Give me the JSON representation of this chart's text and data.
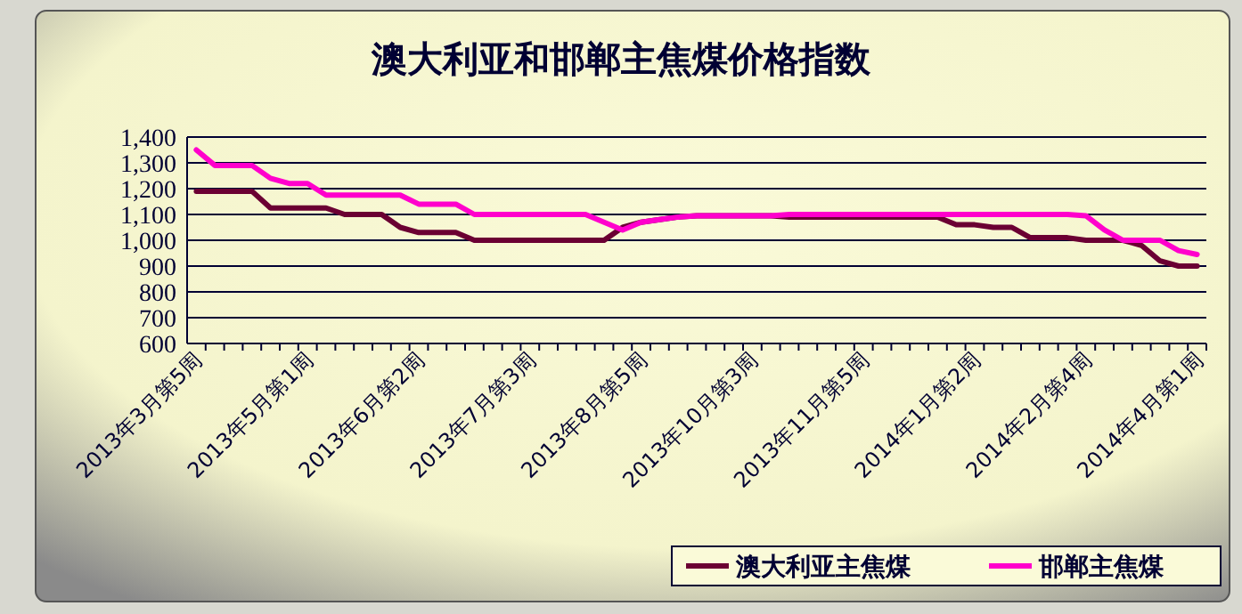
{
  "chart_data": {
    "type": "line",
    "title": "澳大利亚和邯郸主焦煤价格指数",
    "categories": [
      "2013年3月第5周",
      null,
      null,
      null,
      null,
      null,
      "2013年5月第1周",
      null,
      null,
      null,
      null,
      null,
      "2013年6月第2周",
      null,
      null,
      null,
      null,
      null,
      "2013年7月第3周",
      null,
      null,
      null,
      null,
      null,
      "2013年8月第5周",
      null,
      null,
      null,
      null,
      null,
      "2013年10月第3周",
      null,
      null,
      null,
      null,
      null,
      "2013年11月第5周",
      null,
      null,
      null,
      null,
      null,
      "2014年1月第2周",
      null,
      null,
      null,
      null,
      null,
      "2014年2月第4周",
      null,
      null,
      null,
      null,
      null,
      "2014年4月第1周"
    ],
    "series": [
      {
        "name": "澳大利亚主焦煤",
        "color": "#6b0033",
        "values": [
          1190,
          1190,
          1190,
          1190,
          1125,
          1125,
          1125,
          1125,
          1100,
          1100,
          1100,
          1050,
          1030,
          1030,
          1030,
          1000,
          1000,
          1000,
          1000,
          1000,
          1000,
          1000,
          1000,
          1050,
          1070,
          1080,
          1090,
          1095,
          1095,
          1095,
          1095,
          1095,
          1090,
          1090,
          1090,
          1090,
          1090,
          1090,
          1090,
          1090,
          1090,
          1060,
          1060,
          1050,
          1050,
          1010,
          1010,
          1010,
          1000,
          1000,
          1000,
          980,
          920,
          900,
          900
        ]
      },
      {
        "name": "邯郸主焦煤",
        "color": "#ff00cc",
        "values": [
          1350,
          1290,
          1290,
          1290,
          1240,
          1220,
          1220,
          1175,
          1175,
          1175,
          1175,
          1175,
          1140,
          1140,
          1140,
          1100,
          1100,
          1100,
          1100,
          1100,
          1100,
          1100,
          1070,
          1040,
          1070,
          1080,
          1090,
          1095,
          1095,
          1095,
          1095,
          1095,
          1100,
          1100,
          1100,
          1100,
          1100,
          1100,
          1100,
          1100,
          1100,
          1100,
          1100,
          1100,
          1100,
          1100,
          1100,
          1100,
          1095,
          1040,
          1000,
          1000,
          1000,
          960,
          945
        ]
      }
    ],
    "ylim": [
      600,
      1400
    ],
    "yticks": [
      600,
      700,
      800,
      900,
      {
        "value": 1000,
        "label": "1,000"
      },
      {
        "value": 1100,
        "label": "1,100"
      },
      {
        "value": 1200,
        "label": "1,200"
      },
      {
        "value": 1300,
        "label": "1,300"
      },
      {
        "value": 1400,
        "label": "1,400"
      }
    ],
    "grid": "y",
    "legend": "bottom right",
    "marker": "none",
    "line_style": "solid"
  }
}
